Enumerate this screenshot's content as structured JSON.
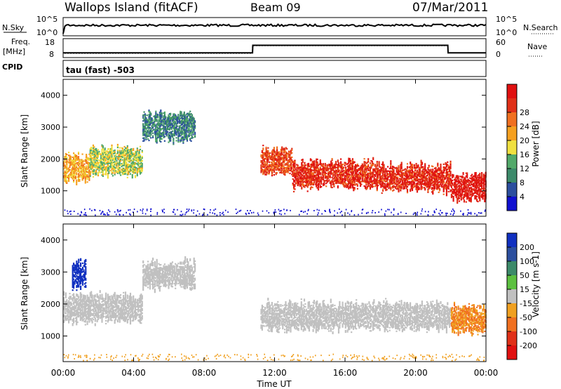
{
  "header": {
    "station": "Wallops Island (fitACF)",
    "beam": "Beam 09",
    "date": "07/Mar/2011"
  },
  "top_panels": {
    "nsky_label": "N.Sky",
    "nsearch_label": "N.Search",
    "noise_tick_high": "10^5",
    "noise_tick_low": "10^0",
    "freq_label_1": "Freq.",
    "freq_label_2": "[MHz]",
    "freq_tick_high": "18",
    "freq_tick_low": "8",
    "nave_label": "Nave",
    "nave_tick_high": "60",
    "nave_tick_low": "0",
    "cpid_label": "CPID",
    "cpid_text": "tau (fast) -503"
  },
  "x_axis": {
    "title": "Time UT",
    "ticks": [
      "00:00",
      "04:00",
      "08:00",
      "12:00",
      "16:00",
      "20:00",
      "00:00"
    ]
  },
  "power_panel": {
    "ylabel": "Slant Range [km]",
    "yticks": [
      "1000",
      "2000",
      "3000",
      "4000"
    ],
    "colorbar_label": "Power [dB]",
    "colorbar_ticks": [
      "4",
      "8",
      "12",
      "16",
      "20",
      "24",
      "28"
    ],
    "colors": [
      "#1010d0",
      "#2c4f9e",
      "#3c8a6a",
      "#52a96a",
      "#f0e040",
      "#f5a020",
      "#f07020",
      "#e03018",
      "#e01010"
    ]
  },
  "velocity_panel": {
    "ylabel": "Slant Range [km]",
    "yticks": [
      "1000",
      "2000",
      "3000",
      "4000"
    ],
    "colorbar_label": "Velocity [m s-1]",
    "colorbar_ticks": [
      "200",
      "100",
      "50",
      "15",
      "-15",
      "-50",
      "-100",
      "-200"
    ],
    "colors": [
      "#1030c0",
      "#2c4f9e",
      "#3c8a6a",
      "#5cc040",
      "#c0c0c0",
      "#f0a020",
      "#f07020",
      "#e03018",
      "#e01010"
    ]
  },
  "chart_data": [
    {
      "type": "line",
      "title": "Wallops Island (fitACF)",
      "xlabel": "Time UT",
      "ylabel": "Freq. [MHz]",
      "x": [
        "00:00",
        "10:45",
        "10:46",
        "21:50",
        "21:51",
        "24:00"
      ],
      "series": [
        {
          "name": "Freq.",
          "values": [
            10.5,
            10.5,
            14.5,
            14.5,
            10.5,
            10.5
          ]
        }
      ],
      "ylim": [
        8,
        18
      ]
    },
    {
      "type": "heatmap",
      "title": "Beam 09",
      "xlabel": "Time UT",
      "ylabel": "Slant Range [km]",
      "colorbar": "Power [dB]",
      "xlim": [
        "00:00",
        "24:00"
      ],
      "ylim": [
        200,
        4500
      ],
      "clim": [
        0,
        30
      ],
      "bands": [
        {
          "t_start_h": 0.0,
          "t_end_h": 1.5,
          "range_km": 1700,
          "power_db": 18
        },
        {
          "t_start_h": 1.5,
          "t_end_h": 4.5,
          "range_km": 1900,
          "power_db": 14
        },
        {
          "t_start_h": 4.5,
          "t_end_h": 7.5,
          "range_km": 3000,
          "power_db": 8
        },
        {
          "t_start_h": 11.2,
          "t_end_h": 13.0,
          "range_km": 1900,
          "power_db": 24
        },
        {
          "t_start_h": 13.0,
          "t_end_h": 18.0,
          "range_km": 1500,
          "power_db": 26
        },
        {
          "t_start_h": 18.0,
          "t_end_h": 22.0,
          "range_km": 1400,
          "power_db": 26
        },
        {
          "t_start_h": 22.0,
          "t_end_h": 24.0,
          "range_km": 1100,
          "power_db": 28
        }
      ]
    },
    {
      "type": "heatmap",
      "title": "Beam 09",
      "xlabel": "Time UT",
      "ylabel": "Slant Range [km]",
      "colorbar": "Velocity [m s-1]",
      "xlim": [
        "00:00",
        "24:00"
      ],
      "ylim": [
        200,
        4500
      ],
      "clim": [
        -200,
        200
      ],
      "bands": [
        {
          "t_start_h": 0.5,
          "t_end_h": 1.3,
          "range_km": 2900,
          "velocity_ms": 200
        },
        {
          "t_start_h": 0.0,
          "t_end_h": 4.5,
          "range_km": 1850,
          "velocity_ms": 0
        },
        {
          "t_start_h": 4.5,
          "t_end_h": 7.5,
          "range_km": 2900,
          "velocity_ms": 0
        },
        {
          "t_start_h": 11.2,
          "t_end_h": 22.0,
          "range_km": 1600,
          "velocity_ms": 0
        },
        {
          "t_start_h": 22.0,
          "t_end_h": 24.0,
          "range_km": 1500,
          "velocity_ms": -50
        }
      ]
    }
  ]
}
